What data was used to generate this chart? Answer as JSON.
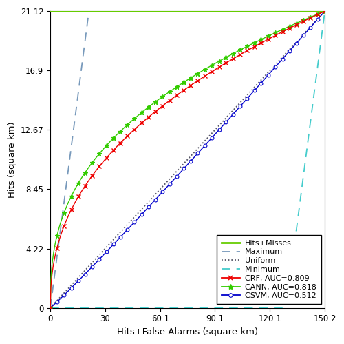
{
  "x_max": 150.2,
  "y_max": 21.12,
  "x_ticks": [
    0,
    30.0,
    60.1,
    90.1,
    120.1,
    150.2
  ],
  "y_ticks": [
    0,
    4.22,
    8.45,
    12.67,
    16.9,
    21.12
  ],
  "xlabel": "Hits+False Alarms (square km)",
  "ylabel": "Hits (square km)",
  "hits_misses_y": 21.12,
  "color_hits_misses": "#66cc00",
  "color_maximum": "#7799bb",
  "color_uniform": "#555566",
  "color_minimum": "#44cccc",
  "color_crf": "#ee0000",
  "color_cann": "#33cc00",
  "color_csvm": "#0000cc",
  "legend_entries": [
    "Hits+Misses",
    "Maximum",
    "Uniform",
    "Minimum",
    "CRF, AUC=0.809",
    "CANN, AUC=0.818",
    "CSVM, AUC=0.512"
  ],
  "n_points": 500,
  "n_markers": 40
}
